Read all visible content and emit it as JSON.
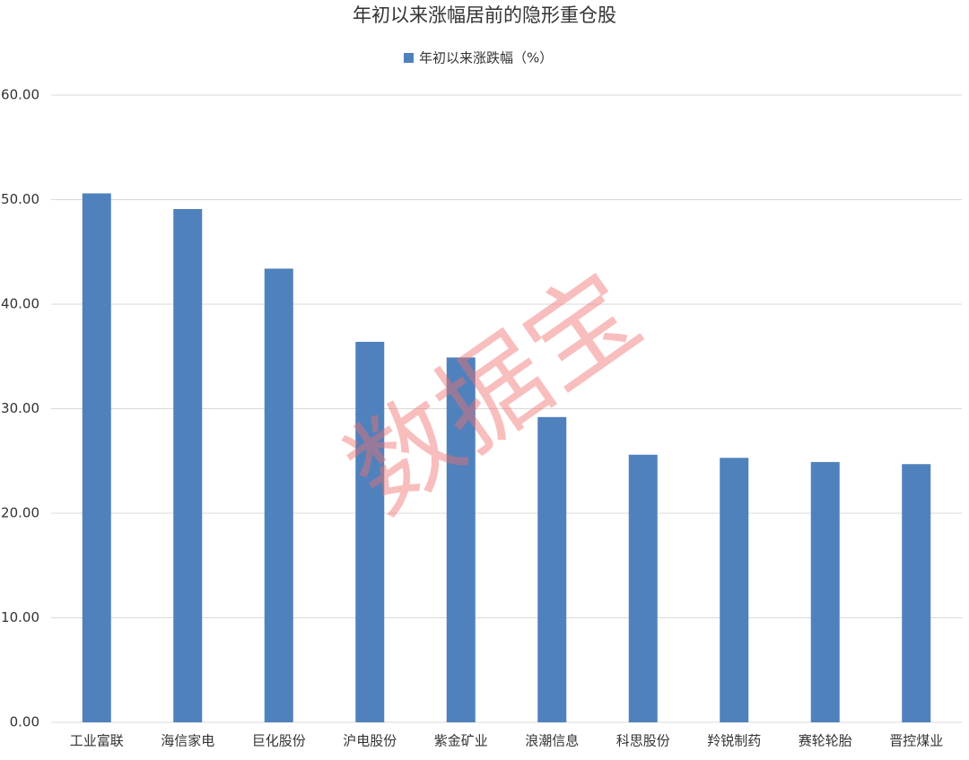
{
  "chart_data": {
    "type": "bar",
    "title": "年初以来涨幅居前的隐形重仓股",
    "categories": [
      "工业富联",
      "海信家电",
      "巨化股份",
      "沪电股份",
      "紫金矿业",
      "浪潮信息",
      "科思股份",
      "羚锐制药",
      "赛轮轮胎",
      "晋控煤业"
    ],
    "series": [
      {
        "name": "年初以来涨跌幅（%）",
        "color": "#4f81bd",
        "values": [
          50.6,
          49.1,
          43.4,
          36.4,
          34.9,
          29.2,
          25.6,
          25.3,
          24.9,
          24.7
        ]
      }
    ],
    "ylim": [
      0,
      60
    ],
    "yticks": [
      {
        "value": 0,
        "label": "0.00"
      },
      {
        "value": 10,
        "label": "10.00"
      },
      {
        "value": 20,
        "label": "20.00"
      },
      {
        "value": 30,
        "label": "30.00"
      },
      {
        "value": 40,
        "label": "40.00"
      },
      {
        "value": 50,
        "label": "50.00"
      },
      {
        "value": 60,
        "label": "60.00"
      }
    ],
    "grid": true,
    "legend": "top",
    "watermark": "数据宝"
  }
}
